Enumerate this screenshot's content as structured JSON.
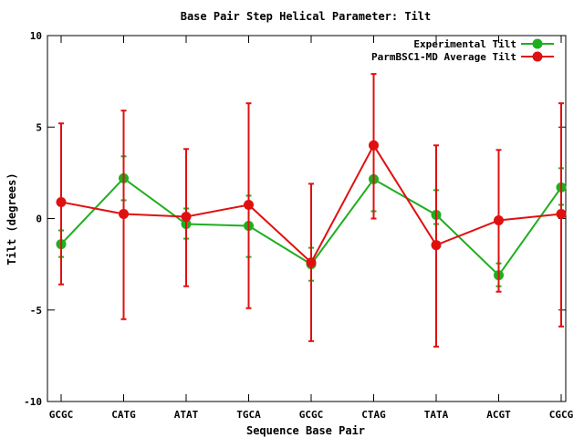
{
  "chart_data": {
    "type": "line",
    "title": "Base Pair Step Helical Parameter: Tilt",
    "xlabel": "Sequence Base Pair",
    "ylabel": "Tilt (degrees)",
    "categories": [
      "GCGC",
      "CATG",
      "ATAT",
      "TGCA",
      "GCGC",
      "CTAG",
      "TATA",
      "ACGT",
      "CGCG"
    ],
    "ylim": [
      -10,
      10
    ],
    "yticks": [
      -10,
      -5,
      0,
      5,
      10
    ],
    "grid": false,
    "legend_position": "top-right",
    "series": [
      {
        "name": "Experimental Tilt",
        "color": "#1fae1f",
        "marker": "circle",
        "values": [
          -1.4,
          2.2,
          -0.3,
          -0.4,
          -2.5,
          2.15,
          0.2,
          -3.1,
          1.7
        ],
        "err_low": [
          -2.1,
          1.0,
          -1.1,
          -2.1,
          -3.4,
          0.4,
          -0.3,
          -3.7,
          0.75
        ],
        "err_high": [
          -0.65,
          3.4,
          0.55,
          1.25,
          -1.6,
          3.9,
          1.55,
          -2.45,
          2.75
        ]
      },
      {
        "name": "ParmBSC1-MD Average Tilt",
        "color": "#e01010",
        "marker": "circle",
        "values": [
          0.9,
          0.25,
          0.1,
          0.75,
          -2.4,
          4.0,
          -1.45,
          -0.1,
          0.25
        ],
        "err_low": [
          -3.6,
          -5.5,
          -3.7,
          -4.9,
          -6.7,
          0.0,
          -7.0,
          -4.0,
          -5.9
        ],
        "err_high": [
          5.2,
          5.9,
          3.8,
          6.3,
          1.9,
          7.9,
          4.0,
          3.75,
          6.3
        ]
      }
    ]
  }
}
